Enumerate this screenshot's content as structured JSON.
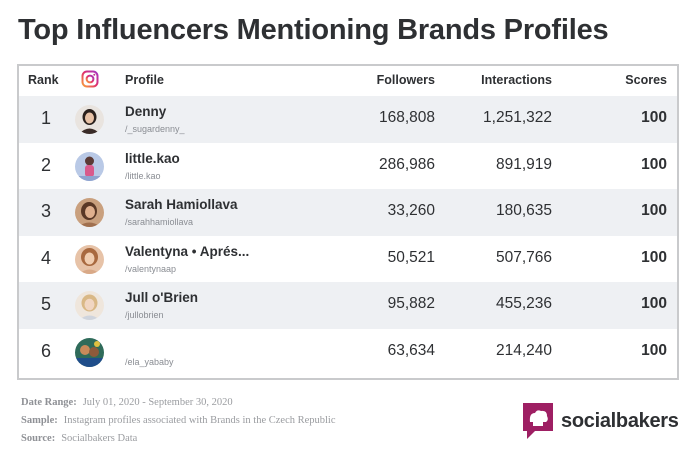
{
  "title": "Top Influencers Mentioning Brands Profiles",
  "columns": {
    "rank": "Rank",
    "profile": "Profile",
    "followers": "Followers",
    "interactions": "Interactions",
    "scores": "Scores"
  },
  "rows": [
    {
      "rank": "1",
      "name": "Denny",
      "handle": "/_sugardenny_",
      "followers": "168,808",
      "interactions": "1,251,322",
      "score": "100"
    },
    {
      "rank": "2",
      "name": "little.kao",
      "handle": "/little.kao",
      "followers": "286,986",
      "interactions": "891,919",
      "score": "100"
    },
    {
      "rank": "3",
      "name": "Sarah Hamiollava",
      "handle": "/sarahhamiollava",
      "followers": "33,260",
      "interactions": "180,635",
      "score": "100"
    },
    {
      "rank": "4",
      "name": "Valentyna • Aprés...",
      "handle": "/valentynaap",
      "followers": "50,521",
      "interactions": "507,766",
      "score": "100"
    },
    {
      "rank": "5",
      "name": "Jull o'Brien",
      "handle": "/jullobrien",
      "followers": "95,882",
      "interactions": "455,236",
      "score": "100"
    },
    {
      "rank": "6",
      "name": "",
      "handle": "/ela_yababy",
      "followers": "63,634",
      "interactions": "214,240",
      "score": "100"
    }
  ],
  "footer": {
    "date_label": "Date Range:",
    "date_value": "July 01, 2020 - September 30, 2020",
    "sample_label": "Sample:",
    "sample_value": "Instagram profiles associated with Brands in the Czech Republic",
    "source_label": "Source:",
    "source_value": "Socialbakers Data"
  },
  "brand": {
    "name": "socialbakers",
    "color": "#9e1f63"
  },
  "colors": {
    "row_alt": "#eef0f3",
    "border": "#c9cacc",
    "instagram": "#d6249f"
  },
  "icons": {
    "column": "instagram-icon",
    "brand": "socialbakers-logo-icon"
  }
}
